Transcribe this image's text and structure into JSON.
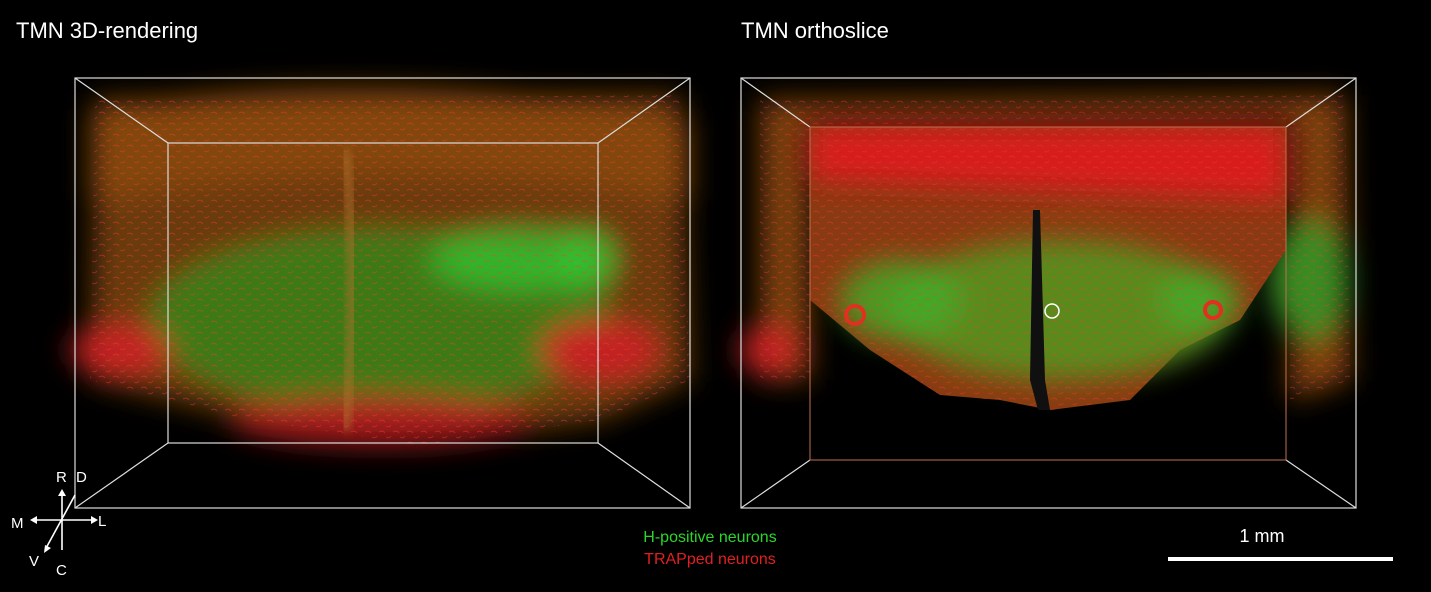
{
  "panels": [
    {
      "title": "TMN 3D-rendering"
    },
    {
      "title": "TMN orthoslice"
    }
  ],
  "orientation": {
    "up": "R",
    "up_right": "D",
    "left": "M",
    "right": "L",
    "down_left": "V",
    "down": "C"
  },
  "legend": {
    "items": [
      {
        "label": "H-positive neurons",
        "color": "#2bd62b"
      },
      {
        "label": "TRAPped neurons",
        "color": "#e02020"
      }
    ]
  },
  "scale_bar": {
    "label": "1 mm"
  }
}
